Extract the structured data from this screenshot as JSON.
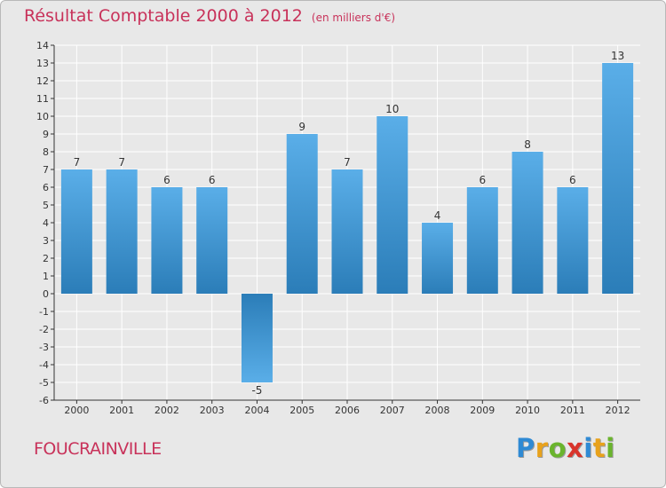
{
  "chart_data": {
    "type": "bar",
    "title": "Résultat Comptable 2000 à 2012",
    "subtitle": "(en milliers d'€)",
    "xlabel": "",
    "ylabel": "",
    "ylim": [
      -6,
      14
    ],
    "yticks": [
      -6,
      -5,
      -4,
      -3,
      -2,
      -1,
      0,
      1,
      2,
      3,
      4,
      5,
      6,
      7,
      8,
      9,
      10,
      11,
      12,
      13,
      14
    ],
    "grid": true,
    "categories": [
      "2000",
      "2001",
      "2002",
      "2003",
      "2004",
      "2005",
      "2006",
      "2007",
      "2008",
      "2009",
      "2010",
      "2011",
      "2012"
    ],
    "values": [
      7,
      7,
      6,
      6,
      -5,
      9,
      7,
      10,
      4,
      6,
      8,
      6,
      13
    ],
    "colors": {
      "bar_light": "#5aaee8",
      "bar_dark": "#2b7db8",
      "grid": "#ffffff",
      "axis": "#333333",
      "label": "#333333"
    }
  },
  "footer": {
    "place_name": "FOUCRAINVILLE",
    "logo_letters": [
      "P",
      "r",
      "o",
      "x",
      "i",
      "t",
      "i"
    ],
    "logo_colors": [
      "#2f8ad4",
      "#e8a21c",
      "#6ab42d",
      "#d9342b",
      "#2f8ad4",
      "#e8a21c",
      "#6ab42d"
    ]
  }
}
